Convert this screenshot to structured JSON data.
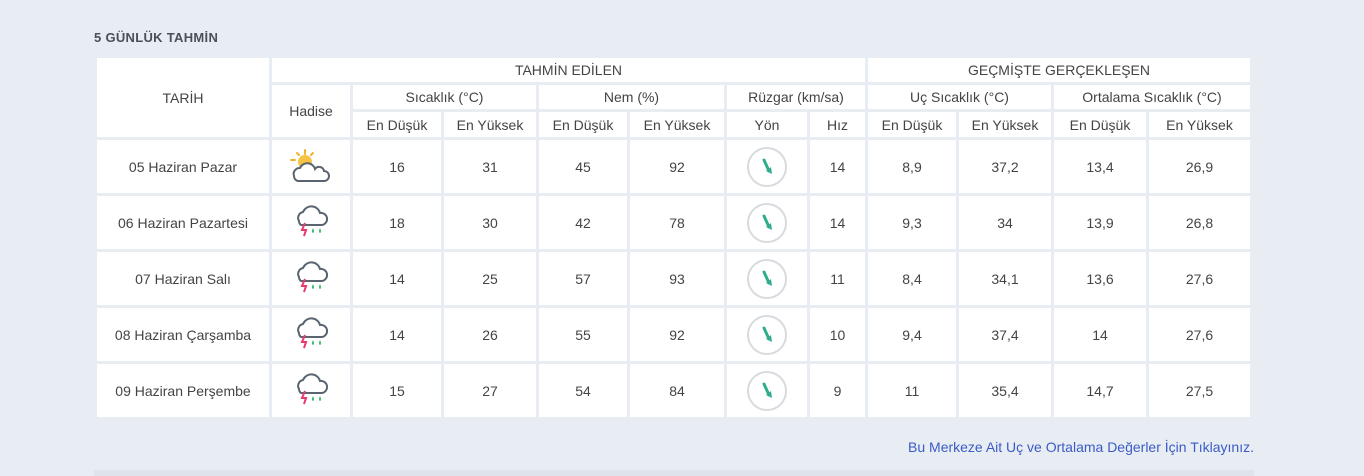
{
  "section_title": "5 GÜNLÜK TAHMİN",
  "headers": {
    "date": "TARİH",
    "event": "Hadise",
    "forecast_group": "TAHMİN EDİLEN",
    "observed_group": "GEÇMİŞTE GERÇEKLEŞEN",
    "temperature": "Sıcaklık (°C)",
    "humidity": "Nem (%)",
    "wind": "Rüzgar (km/sa)",
    "extreme_temp": "Uç Sıcaklık (°C)",
    "avg_temp": "Ortalama Sıcaklık (°C)",
    "min": "En Düşük",
    "max": "En Yüksek",
    "direction": "Yön",
    "speed": "Hız"
  },
  "rows": [
    {
      "date": "05 Haziran Pazar",
      "icon": "partly-cloudy-icon",
      "temp_min": "16",
      "temp_max": "31",
      "hum_min": "45",
      "hum_max": "92",
      "wind_dir": "arrow-icon",
      "wind_speed": "14",
      "ext_min": "8,9",
      "ext_max": "37,2",
      "avg_min": "13,4",
      "avg_max": "26,9"
    },
    {
      "date": "06 Haziran Pazartesi",
      "icon": "thunderstorm-icon",
      "temp_min": "18",
      "temp_max": "30",
      "hum_min": "42",
      "hum_max": "78",
      "wind_dir": "arrow-icon",
      "wind_speed": "14",
      "ext_min": "9,3",
      "ext_max": "34",
      "avg_min": "13,9",
      "avg_max": "26,8"
    },
    {
      "date": "07 Haziran Salı",
      "icon": "thunderstorm-icon",
      "temp_min": "14",
      "temp_max": "25",
      "hum_min": "57",
      "hum_max": "93",
      "wind_dir": "arrow-icon",
      "wind_speed": "11",
      "ext_min": "8,4",
      "ext_max": "34,1",
      "avg_min": "13,6",
      "avg_max": "27,6"
    },
    {
      "date": "08 Haziran Çarşamba",
      "icon": "thunderstorm-icon",
      "temp_min": "14",
      "temp_max": "26",
      "hum_min": "55",
      "hum_max": "92",
      "wind_dir": "arrow-icon",
      "wind_speed": "10",
      "ext_min": "9,4",
      "ext_max": "37,4",
      "avg_min": "14",
      "avg_max": "27,6"
    },
    {
      "date": "09 Haziran Perşembe",
      "icon": "thunderstorm-icon",
      "temp_min": "15",
      "temp_max": "27",
      "hum_min": "54",
      "hum_max": "84",
      "wind_dir": "arrow-icon",
      "wind_speed": "9",
      "ext_min": "11",
      "ext_max": "35,4",
      "avg_min": "14,7",
      "avg_max": "27,5"
    }
  ],
  "footer_link": "Bu Merkeze Ait Uç ve Ortalama Değerler İçin Tıklayınız.",
  "colors": {
    "min_blue": "#3a8fc9",
    "max_red": "#e03c4b",
    "hum_orange": "#e8a23a",
    "hum_purple": "#7f76b3",
    "wind_green": "#2fae8d"
  }
}
